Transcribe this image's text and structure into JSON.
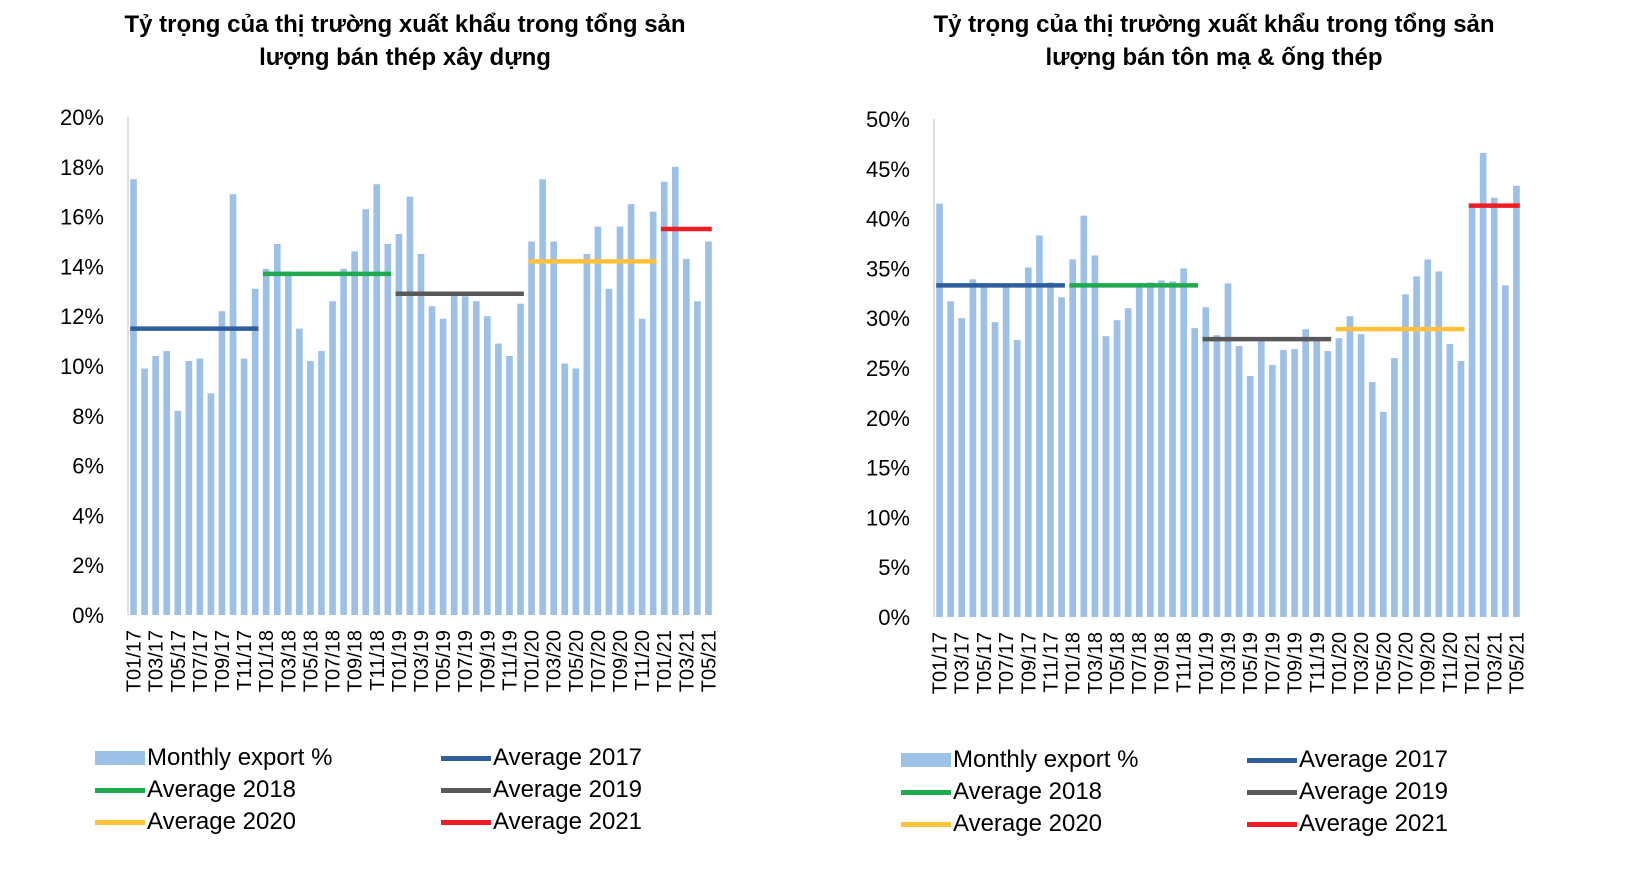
{
  "charts": [
    {
      "title_line1": "Tỷ trọng của thị trường xuất khẩu trong tổng sản",
      "title_line2": "lượng bán thép xây dựng"
    },
    {
      "title_line1": "Tỷ trọng của thị trường xuất khẩu trong tổng sản",
      "title_line2": "lượng bán tôn mạ & ống thép"
    }
  ],
  "chart_data": [
    {
      "type": "bar",
      "title": "Tỷ trọng của thị trường xuất khẩu trong tổng sản lượng bán thép xây dựng",
      "xlabel": "",
      "ylabel": "",
      "ylim": [
        0,
        20
      ],
      "yticks": [
        0,
        2,
        4,
        6,
        8,
        10,
        12,
        14,
        16,
        18,
        20
      ],
      "ytick_labels": [
        "0%",
        "2%",
        "4%",
        "6%",
        "8%",
        "10%",
        "12%",
        "14%",
        "16%",
        "18%",
        "20%"
      ],
      "categories": [
        "T01/17",
        "T02/17",
        "T03/17",
        "T04/17",
        "T05/17",
        "T06/17",
        "T07/17",
        "T08/17",
        "T09/17",
        "T10/17",
        "T11/17",
        "T12/17",
        "T01/18",
        "T02/18",
        "T03/18",
        "T04/18",
        "T05/18",
        "T06/18",
        "T07/18",
        "T08/18",
        "T09/18",
        "T10/18",
        "T11/18",
        "T12/18",
        "T01/19",
        "T02/19",
        "T03/19",
        "T04/19",
        "T05/19",
        "T06/19",
        "T07/19",
        "T08/19",
        "T09/19",
        "T10/19",
        "T11/19",
        "T12/19",
        "T01/20",
        "T02/20",
        "T03/20",
        "T04/20",
        "T05/20",
        "T06/20",
        "T07/20",
        "T08/20",
        "T09/20",
        "T10/20",
        "T11/20",
        "T12/20",
        "T01/21",
        "T02/21",
        "T03/21",
        "T04/21",
        "T05/21"
      ],
      "tick_labels": [
        "T01/17",
        "T03/17",
        "T05/17",
        "T07/17",
        "T09/17",
        "T11/17",
        "T01/18",
        "T03/18",
        "T05/18",
        "T07/18",
        "T09/18",
        "T11/18",
        "T01/19",
        "T03/19",
        "T05/19",
        "T07/19",
        "T09/19",
        "T11/19",
        "T01/20",
        "T03/20",
        "T05/20",
        "T07/20",
        "T09/20",
        "T11/20",
        "T01/21",
        "T03/21",
        "T05/21"
      ],
      "series": [
        {
          "name": "Monthly export %",
          "color": "#9DC0E6",
          "values": [
            17.5,
            9.9,
            10.4,
            10.6,
            8.2,
            10.2,
            10.3,
            8.9,
            12.2,
            16.9,
            10.3,
            13.1,
            13.9,
            14.9,
            13.8,
            11.5,
            10.2,
            10.6,
            12.6,
            13.9,
            14.6,
            16.3,
            17.3,
            14.9,
            15.3,
            16.8,
            14.5,
            12.4,
            11.9,
            12.9,
            12.8,
            12.6,
            12.0,
            10.9,
            10.4,
            12.5,
            15.0,
            17.5,
            15.0,
            10.1,
            9.9,
            14.5,
            15.6,
            13.1,
            15.6,
            16.5,
            11.9,
            16.2,
            17.4,
            18.0,
            14.3,
            12.6,
            15.0
          ]
        }
      ],
      "averages": [
        {
          "name": "Average 2017",
          "color": "#2E5E9E",
          "value": 11.5,
          "from": "T01/17",
          "to": "T12/17"
        },
        {
          "name": "Average 2018",
          "color": "#20AA4F",
          "value": 13.7,
          "from": "T01/18",
          "to": "T12/18"
        },
        {
          "name": "Average 2019",
          "color": "#595959",
          "value": 12.9,
          "from": "T01/19",
          "to": "T12/19"
        },
        {
          "name": "Average 2020",
          "color": "#FFC03A",
          "value": 14.2,
          "from": "T01/20",
          "to": "T12/20"
        },
        {
          "name": "Average 2021",
          "color": "#EE1C25",
          "value": 15.5,
          "from": "T01/21",
          "to": "T05/21"
        }
      ],
      "legend": [
        "Monthly export %",
        "Average 2017",
        "Average 2018",
        "Average 2019",
        "Average 2020",
        "Average 2021"
      ]
    },
    {
      "type": "bar",
      "title": "Tỷ trọng của thị trường xuất khẩu trong tổng sản lượng bán tôn mạ & ống thép",
      "xlabel": "",
      "ylabel": "",
      "ylim": [
        0,
        50
      ],
      "yticks": [
        0,
        5,
        10,
        15,
        20,
        25,
        30,
        35,
        40,
        45,
        50
      ],
      "ytick_labels": [
        "0%",
        "5%",
        "10%",
        "15%",
        "20%",
        "25%",
        "30%",
        "35%",
        "40%",
        "45%",
        "50%"
      ],
      "categories": [
        "T01/17",
        "T02/17",
        "T03/17",
        "T04/17",
        "T05/17",
        "T06/17",
        "T07/17",
        "T08/17",
        "T09/17",
        "T10/17",
        "T11/17",
        "T12/17",
        "T01/18",
        "T02/18",
        "T03/18",
        "T04/18",
        "T05/18",
        "T06/18",
        "T07/18",
        "T08/18",
        "T09/18",
        "T10/18",
        "T11/18",
        "T12/18",
        "T01/19",
        "T02/19",
        "T03/19",
        "T04/19",
        "T05/19",
        "T06/19",
        "T07/19",
        "T08/19",
        "T09/19",
        "T10/19",
        "T11/19",
        "T12/19",
        "T01/20",
        "T02/20",
        "T03/20",
        "T04/20",
        "T05/20",
        "T06/20",
        "T07/20",
        "T08/20",
        "T09/20",
        "T10/20",
        "T11/20",
        "T12/20",
        "T01/21",
        "T02/21",
        "T03/21",
        "T04/21",
        "T05/21"
      ],
      "tick_labels": [
        "T01/17",
        "T03/17",
        "T05/17",
        "T07/17",
        "T09/17",
        "T11/17",
        "T01/18",
        "T03/18",
        "T05/18",
        "T07/18",
        "T09/18",
        "T11/18",
        "T01/19",
        "T03/19",
        "T05/19",
        "T07/19",
        "T09/19",
        "T11/19",
        "T01/20",
        "T03/20",
        "T05/20",
        "T07/20",
        "T09/20",
        "T11/20",
        "T01/21",
        "T03/21",
        "T05/21"
      ],
      "series": [
        {
          "name": "Monthly export %",
          "color": "#9DC0E6",
          "values": [
            41.5,
            31.7,
            30.0,
            33.9,
            33.3,
            29.6,
            33.2,
            27.8,
            35.1,
            38.3,
            33.6,
            32.1,
            35.9,
            40.3,
            36.3,
            28.2,
            29.8,
            31.0,
            33.2,
            33.6,
            33.8,
            33.7,
            35.0,
            29.0,
            31.1,
            28.3,
            33.5,
            27.2,
            24.2,
            28.0,
            25.3,
            26.8,
            26.9,
            28.9,
            28.1,
            26.7,
            28.0,
            30.2,
            28.4,
            23.6,
            20.6,
            26.0,
            32.4,
            34.2,
            35.9,
            34.7,
            27.4,
            25.7,
            41.5,
            46.6,
            42.1,
            33.3,
            43.3
          ]
        }
      ],
      "averages": [
        {
          "name": "Average 2017",
          "color": "#2E5E9E",
          "value": 33.3,
          "from": "T01/17",
          "to": "T12/17"
        },
        {
          "name": "Average 2018",
          "color": "#20AA4F",
          "value": 33.3,
          "from": "T01/18",
          "to": "T12/18"
        },
        {
          "name": "Average 2019",
          "color": "#595959",
          "value": 27.9,
          "from": "T01/19",
          "to": "T12/19"
        },
        {
          "name": "Average 2020",
          "color": "#FFC03A",
          "value": 28.9,
          "from": "T01/20",
          "to": "T12/20"
        },
        {
          "name": "Average 2021",
          "color": "#EE1C25",
          "value": 41.3,
          "from": "T01/21",
          "to": "T05/21"
        }
      ],
      "legend": [
        "Monthly export %",
        "Average 2017",
        "Average 2018",
        "Average 2019",
        "Average 2020",
        "Average 2021"
      ]
    }
  ]
}
